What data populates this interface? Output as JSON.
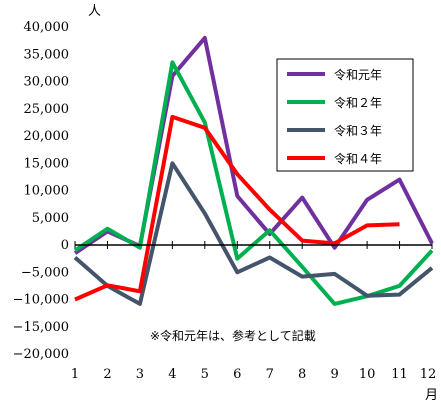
{
  "chart_data": {
    "type": "line",
    "y_unit": "人",
    "x_unit": "月",
    "categories": [
      "1",
      "2",
      "3",
      "4",
      "5",
      "6",
      "7",
      "8",
      "9",
      "10",
      "11",
      "12"
    ],
    "ylim": [
      -20000,
      40000
    ],
    "y_ticks": [
      40000,
      35000,
      30000,
      25000,
      20000,
      15000,
      10000,
      5000,
      0,
      -5000,
      -10000,
      -15000,
      -20000
    ],
    "y_tick_labels": [
      "40,000",
      "35,000",
      "30,000",
      "25,000",
      "20,000",
      "15,000",
      "10,000",
      "5,000",
      "0",
      "−5,000",
      "−10,000",
      "−15,000",
      "−20,000"
    ],
    "grid": false,
    "zero_line": true,
    "legend_position": "top-right",
    "series": [
      {
        "name": "令和元年",
        "color": "#7030a0",
        "values": [
          -1500,
          2500,
          -200,
          31000,
          38000,
          9000,
          2000,
          8700,
          -500,
          8300,
          12000,
          300
        ]
      },
      {
        "name": "令和２年",
        "color": "#00b050",
        "values": [
          -1000,
          3000,
          -500,
          33500,
          22500,
          -2500,
          2700,
          -4000,
          -10800,
          -9400,
          -7500,
          -1000
        ]
      },
      {
        "name": "令和３年",
        "color": "#44546a",
        "values": [
          -2300,
          -7500,
          -10800,
          15000,
          5800,
          -5000,
          -2300,
          -5800,
          -5300,
          -9300,
          -9100,
          -4200
        ]
      },
      {
        "name": "令和４年",
        "color": "#ff0000",
        "values": [
          -10000,
          -7400,
          -8500,
          23500,
          21500,
          13000,
          6500,
          800,
          300,
          3600,
          3800,
          null
        ]
      }
    ],
    "annotation": "※令和元年は、参考として記載"
  }
}
